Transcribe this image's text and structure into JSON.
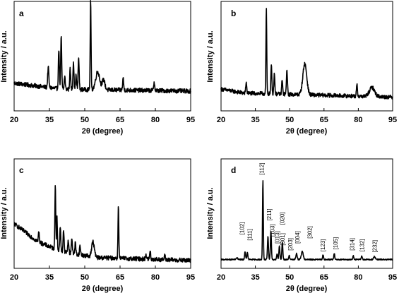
{
  "chart_data": [
    {
      "type": "line",
      "panel_label": "a",
      "xlabel": "2θ (degree)",
      "ylabel": "Intensity / a.u.",
      "xlim": [
        20,
        95
      ],
      "x_ticks": [
        "20",
        "35",
        "50",
        "65",
        "80",
        "95"
      ],
      "baseline": 0.17,
      "noise": 0.022,
      "background": [
        [
          20,
          0.08
        ],
        [
          40,
          0.02
        ],
        [
          95,
          0.0
        ]
      ],
      "peaks": [
        {
          "x": 34.5,
          "y": 0.2,
          "w": 0.35
        },
        {
          "x": 39.0,
          "y": 0.4,
          "w": 0.3
        },
        {
          "x": 40.0,
          "y": 0.52,
          "w": 0.3
        },
        {
          "x": 41.5,
          "y": 0.13,
          "w": 0.3
        },
        {
          "x": 43.8,
          "y": 0.2,
          "w": 0.3
        },
        {
          "x": 45.2,
          "y": 0.28,
          "w": 0.3
        },
        {
          "x": 46.3,
          "y": 0.14,
          "w": 0.3
        },
        {
          "x": 47.4,
          "y": 0.32,
          "w": 0.3
        },
        {
          "x": 52.5,
          "y": 0.9,
          "w": 0.25
        },
        {
          "x": 55.5,
          "y": 0.18,
          "w": 1.2
        },
        {
          "x": 58.0,
          "y": 0.1,
          "w": 0.8
        },
        {
          "x": 66.3,
          "y": 0.12,
          "w": 0.3
        },
        {
          "x": 79.5,
          "y": 0.09,
          "w": 0.3
        }
      ]
    },
    {
      "type": "line",
      "panel_label": "b",
      "xlabel": "2θ (degree)",
      "ylabel": "Intensity / a.u.",
      "xlim": [
        20,
        95
      ],
      "x_ticks": [
        "20",
        "35",
        "50",
        "65",
        "80",
        "95"
      ],
      "baseline": 0.11,
      "noise": 0.02,
      "background": [
        [
          20,
          0.08
        ],
        [
          30,
          0.04
        ],
        [
          95,
          0.0
        ]
      ],
      "peaks": [
        {
          "x": 31.0,
          "y": 0.11,
          "w": 0.3
        },
        {
          "x": 39.8,
          "y": 0.85,
          "w": 0.25
        },
        {
          "x": 42.0,
          "y": 0.29,
          "w": 0.3
        },
        {
          "x": 43.3,
          "y": 0.21,
          "w": 0.3
        },
        {
          "x": 46.7,
          "y": 0.14,
          "w": 0.3
        },
        {
          "x": 48.8,
          "y": 0.25,
          "w": 0.3
        },
        {
          "x": 56.6,
          "y": 0.31,
          "w": 1.2
        },
        {
          "x": 79.4,
          "y": 0.11,
          "w": 0.3
        },
        {
          "x": 86.0,
          "y": 0.09,
          "w": 1.6
        }
      ]
    },
    {
      "type": "line",
      "panel_label": "c",
      "xlabel": "2θ (degree)",
      "ylabel": "Intensity / a.u.",
      "xlim": [
        20,
        95
      ],
      "x_ticks": [
        "20",
        "35",
        "50",
        "65",
        "80",
        "95"
      ],
      "baseline": 0.05,
      "noise": 0.022,
      "background": [
        [
          20,
          0.37
        ],
        [
          30,
          0.19
        ],
        [
          40,
          0.09
        ],
        [
          55,
          0.03
        ],
        [
          95,
          0.0
        ]
      ],
      "peaks": [
        {
          "x": 30.5,
          "y": 0.1,
          "w": 0.3
        },
        {
          "x": 37.5,
          "y": 0.66,
          "w": 0.25
        },
        {
          "x": 38.2,
          "y": 0.32,
          "w": 0.25
        },
        {
          "x": 39.6,
          "y": 0.24,
          "w": 0.3
        },
        {
          "x": 41.0,
          "y": 0.22,
          "w": 0.3
        },
        {
          "x": 43.0,
          "y": 0.13,
          "w": 0.3
        },
        {
          "x": 44.5,
          "y": 0.16,
          "w": 0.3
        },
        {
          "x": 46.0,
          "y": 0.11,
          "w": 0.3
        },
        {
          "x": 48.0,
          "y": 0.09,
          "w": 0.3
        },
        {
          "x": 53.5,
          "y": 0.15,
          "w": 0.8
        },
        {
          "x": 64.3,
          "y": 0.53,
          "w": 0.25
        },
        {
          "x": 76.0,
          "y": 0.05,
          "w": 0.3
        },
        {
          "x": 77.8,
          "y": 0.08,
          "w": 0.3
        },
        {
          "x": 84.0,
          "y": 0.04,
          "w": 0.3
        }
      ]
    },
    {
      "type": "line",
      "panel_label": "d",
      "xlabel": "2θ (degree)",
      "ylabel": "Intensity / a.u.",
      "xlim": [
        20,
        95
      ],
      "x_ticks": [
        "20",
        "35",
        "50",
        "65",
        "80",
        "95"
      ],
      "baseline": 0.06,
      "noise": 0.006,
      "background": [
        [
          20,
          0.0
        ],
        [
          95,
          0.0
        ]
      ],
      "peaks": [
        {
          "x": 27.0,
          "y": 0.02,
          "w": 0.4
        },
        {
          "x": 30.5,
          "y": 0.08,
          "w": 0.3
        },
        {
          "x": 31.5,
          "y": 0.07,
          "w": 0.3
        },
        {
          "x": 38.3,
          "y": 0.8,
          "w": 0.25
        },
        {
          "x": 40.5,
          "y": 0.23,
          "w": 0.3
        },
        {
          "x": 41.8,
          "y": 0.29,
          "w": 0.3
        },
        {
          "x": 44.5,
          "y": 0.06,
          "w": 0.3
        },
        {
          "x": 45.5,
          "y": 0.14,
          "w": 0.3
        },
        {
          "x": 46.8,
          "y": 0.17,
          "w": 0.3
        },
        {
          "x": 49.8,
          "y": 0.04,
          "w": 0.3
        },
        {
          "x": 53.0,
          "y": 0.06,
          "w": 0.4
        },
        {
          "x": 55.5,
          "y": 0.08,
          "w": 0.6
        },
        {
          "x": 64.6,
          "y": 0.05,
          "w": 0.3
        },
        {
          "x": 69.5,
          "y": 0.06,
          "w": 0.3
        },
        {
          "x": 77.8,
          "y": 0.04,
          "w": 0.3
        },
        {
          "x": 81.5,
          "y": 0.04,
          "w": 0.3
        },
        {
          "x": 87.0,
          "y": 0.03,
          "w": 0.5
        }
      ],
      "annotations": [
        {
          "label": "[102]",
          "x": 30.0,
          "y": 0.31
        },
        {
          "label": "[111]",
          "x": 33.5,
          "y": 0.25
        },
        {
          "label": "[112]",
          "x": 38.6,
          "y": 0.91
        },
        {
          "label": "[211]",
          "x": 41.9,
          "y": 0.45
        },
        {
          "label": "[103]",
          "x": 43.3,
          "y": 0.29
        },
        {
          "label": "[020]",
          "x": 47.6,
          "y": 0.41
        },
        {
          "label": "[013]",
          "x": 45.5,
          "y": 0.22
        },
        {
          "label": "[301]",
          "x": 47.8,
          "y": 0.2
        },
        {
          "label": "[203]",
          "x": 51.2,
          "y": 0.15
        },
        {
          "label": "[004]",
          "x": 54.2,
          "y": 0.22
        },
        {
          "label": "[302]",
          "x": 59.6,
          "y": 0.27
        },
        {
          "label": "[123]",
          "x": 65.4,
          "y": 0.14
        },
        {
          "label": "[105]",
          "x": 71.0,
          "y": 0.16
        },
        {
          "label": "[314]",
          "x": 78.2,
          "y": 0.15
        },
        {
          "label": "[132]",
          "x": 82.5,
          "y": 0.14
        },
        {
          "label": "[232]",
          "x": 88.0,
          "y": 0.13
        }
      ]
    }
  ]
}
